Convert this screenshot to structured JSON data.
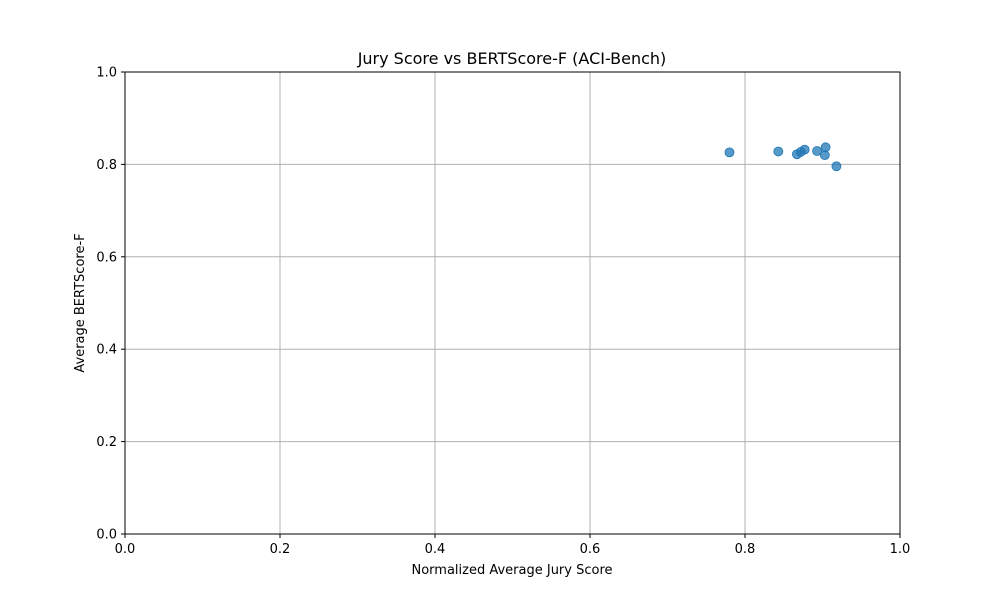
{
  "chart_data": {
    "type": "scatter",
    "title": "Jury Score vs BERTScore-F (ACI-Bench)",
    "xlabel": "Normalized Average Jury Score",
    "ylabel": "Average BERTScore-F",
    "xlim": [
      0.0,
      1.0
    ],
    "ylim": [
      0.0,
      1.0
    ],
    "xticks": [
      "0.0",
      "0.2",
      "0.4",
      "0.6",
      "0.8",
      "1.0"
    ],
    "yticks": [
      "0.0",
      "0.2",
      "0.4",
      "0.6",
      "0.8",
      "1.0"
    ],
    "grid": true,
    "point_color": "#1f77b4",
    "points": [
      {
        "x": 0.78,
        "y": 0.826
      },
      {
        "x": 0.843,
        "y": 0.828
      },
      {
        "x": 0.867,
        "y": 0.822
      },
      {
        "x": 0.872,
        "y": 0.827
      },
      {
        "x": 0.877,
        "y": 0.832
      },
      {
        "x": 0.893,
        "y": 0.829
      },
      {
        "x": 0.903,
        "y": 0.82
      },
      {
        "x": 0.904,
        "y": 0.837
      },
      {
        "x": 0.918,
        "y": 0.796
      }
    ]
  }
}
